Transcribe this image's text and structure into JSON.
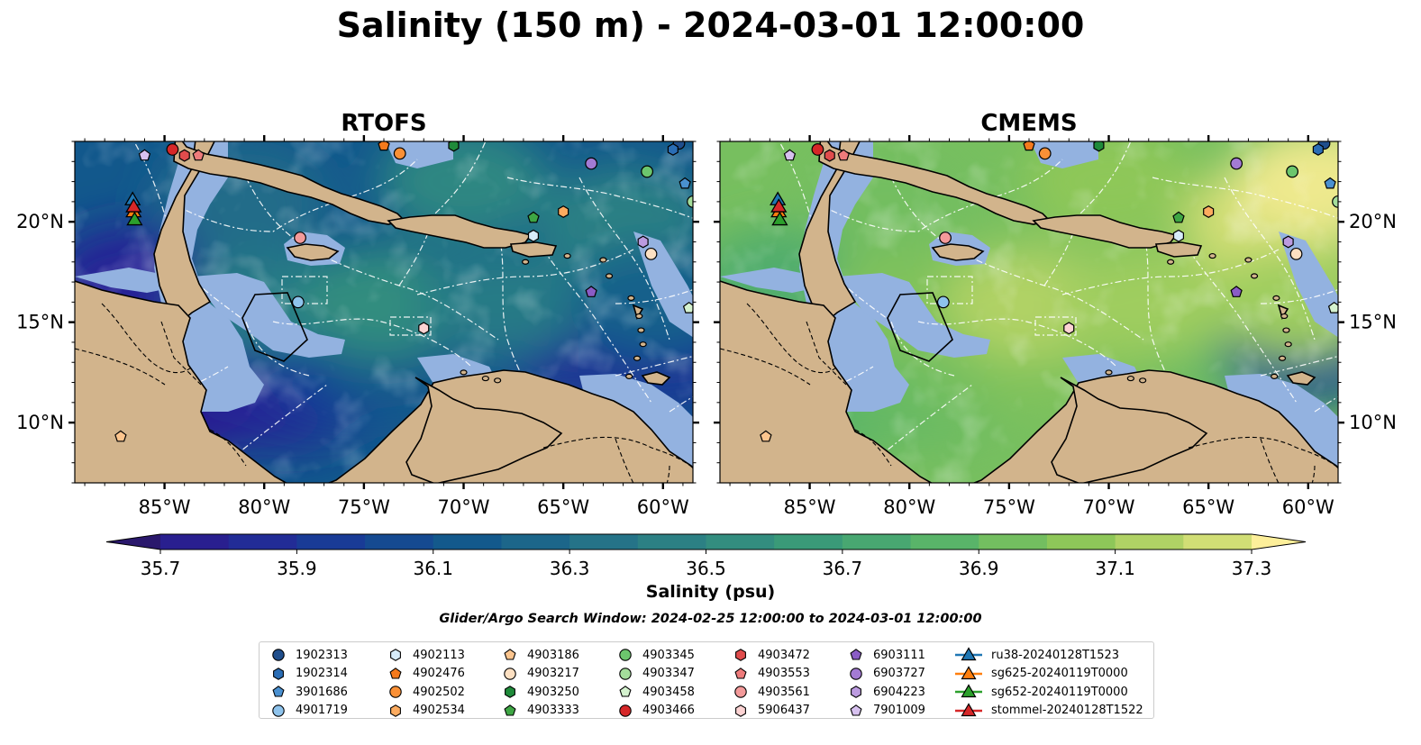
{
  "title": "Salinity (150 m) - 2024-03-01 12:00:00",
  "colorbar_label": "Salinity (psu)",
  "search_window": "Glider/Argo Search Window: 2024-02-25 12:00:00 to 2024-03-01 12:00:00",
  "colors": {
    "land": "#d2b48c",
    "shelf": "#93b2e0",
    "contour": "#ffffff"
  },
  "chart_data": [
    {
      "type": "heatmap",
      "title": "RTOFS",
      "x_ticks": [
        -85,
        -80,
        -75,
        -70,
        -65,
        -60
      ],
      "x_tick_labels": [
        "85°W",
        "80°W",
        "75°W",
        "70°W",
        "65°W",
        "60°W"
      ],
      "y_ticks": [
        10,
        15,
        20
      ],
      "y_tick_labels": [
        "10°N",
        "15°N",
        "20°N"
      ],
      "xlim": [
        -89.5,
        -58.5
      ],
      "ylim": [
        7,
        24
      ],
      "regional_salinity": [
        {
          "lon": -83.5,
          "lat": 11.0,
          "value": 35.75
        },
        {
          "lon": -79.0,
          "lat": 11.5,
          "value": 35.8
        },
        {
          "lon": -76.0,
          "lat": 12.5,
          "value": 35.95
        },
        {
          "lon": -73.0,
          "lat": 13.0,
          "value": 36.15
        },
        {
          "lon": -64.0,
          "lat": 14.0,
          "value": 35.85
        },
        {
          "lon": -60.0,
          "lat": 13.5,
          "value": 35.9
        },
        {
          "lon": -86.5,
          "lat": 17.0,
          "value": 35.8
        },
        {
          "lon": -80.0,
          "lat": 16.0,
          "value": 36.4
        },
        {
          "lon": -74.0,
          "lat": 16.0,
          "value": 36.55
        },
        {
          "lon": -68.0,
          "lat": 16.0,
          "value": 36.4
        },
        {
          "lon": -81.0,
          "lat": 21.0,
          "value": 36.3
        },
        {
          "lon": -70.0,
          "lat": 22.0,
          "value": 36.5
        },
        {
          "lon": -62.0,
          "lat": 20.0,
          "value": 36.45
        },
        {
          "lon": -60.5,
          "lat": 16.0,
          "value": 36.2
        }
      ]
    },
    {
      "type": "heatmap",
      "title": "CMEMS",
      "x_ticks": [
        -85,
        -80,
        -75,
        -70,
        -65,
        -60
      ],
      "x_tick_labels": [
        "85°W",
        "80°W",
        "75°W",
        "70°W",
        "65°W",
        "60°W"
      ],
      "y_ticks": [
        10,
        15,
        20
      ],
      "y_tick_labels": [
        "10°N",
        "15°N",
        "20°N"
      ],
      "xlim": [
        -89.5,
        -58.5
      ],
      "ylim": [
        7,
        24
      ],
      "regional_salinity": [
        {
          "lon": -83.5,
          "lat": 11.0,
          "value": 36.85
        },
        {
          "lon": -79.0,
          "lat": 11.5,
          "value": 36.9
        },
        {
          "lon": -76.0,
          "lat": 12.5,
          "value": 36.95
        },
        {
          "lon": -73.0,
          "lat": 13.0,
          "value": 37.0
        },
        {
          "lon": -64.0,
          "lat": 14.0,
          "value": 36.9
        },
        {
          "lon": -60.0,
          "lat": 13.5,
          "value": 36.1
        },
        {
          "lon": -86.5,
          "lat": 17.0,
          "value": 36.8
        },
        {
          "lon": -80.0,
          "lat": 16.0,
          "value": 37.0
        },
        {
          "lon": -74.0,
          "lat": 16.0,
          "value": 37.15
        },
        {
          "lon": -68.0,
          "lat": 16.0,
          "value": 37.1
        },
        {
          "lon": -81.0,
          "lat": 21.0,
          "value": 36.95
        },
        {
          "lon": -70.0,
          "lat": 22.0,
          "value": 37.05
        },
        {
          "lon": -62.0,
          "lat": 20.0,
          "value": 37.25
        },
        {
          "lon": -59.5,
          "lat": 22.0,
          "value": 37.35
        },
        {
          "lon": -60.5,
          "lat": 16.0,
          "value": 37.1
        }
      ]
    }
  ],
  "colorbar": {
    "min": 35.6,
    "max": 37.4,
    "step": 0.1,
    "ticks": [
      35.7,
      35.9,
      36.1,
      36.3,
      36.5,
      36.7,
      36.9,
      37.1,
      37.3
    ],
    "tick_labels": [
      "35.7",
      "35.9",
      "36.1",
      "36.3",
      "36.5",
      "36.7",
      "36.9",
      "37.1",
      "37.3"
    ],
    "colormap": "haline",
    "extend": "both"
  },
  "observations": [
    {
      "name": "1902313",
      "marker": "circle",
      "color": "#1f4e8c",
      "lon": -59.2,
      "lat": 23.9
    },
    {
      "name": "1902314",
      "marker": "hexagon",
      "color": "#2a6db5",
      "lon": -59.5,
      "lat": 23.6
    },
    {
      "name": "3901686",
      "marker": "pentagon",
      "color": "#4a90d0",
      "lon": -58.9,
      "lat": 21.9
    },
    {
      "name": "4901719",
      "marker": "circle",
      "color": "#8ec3ec",
      "lon": -78.3,
      "lat": 16.0
    },
    {
      "name": "4902113",
      "marker": "hexagon",
      "color": "#d7ecfa",
      "lon": -66.5,
      "lat": 19.3
    },
    {
      "name": "4902476",
      "marker": "pentagon",
      "color": "#f57a1c",
      "lon": -74.0,
      "lat": 23.8
    },
    {
      "name": "4902502",
      "marker": "circle",
      "color": "#fa9036",
      "lon": -73.2,
      "lat": 23.4
    },
    {
      "name": "4902534",
      "marker": "hexagon",
      "color": "#fcab5f",
      "lon": -65.0,
      "lat": 20.5
    },
    {
      "name": "4903186",
      "marker": "pentagon",
      "color": "#fcc58e",
      "lon": -87.2,
      "lat": 9.3
    },
    {
      "name": "4903217",
      "marker": "circle",
      "color": "#fde0c2",
      "lon": -60.6,
      "lat": 18.4
    },
    {
      "name": "4903250",
      "marker": "hexagon",
      "color": "#1f8a3a",
      "lon": -70.5,
      "lat": 23.8
    },
    {
      "name": "4903333",
      "marker": "pentagon",
      "color": "#3ea644",
      "lon": -66.5,
      "lat": 20.2
    },
    {
      "name": "4903345",
      "marker": "circle",
      "color": "#6cc66d",
      "lon": -60.8,
      "lat": 22.5
    },
    {
      "name": "4903347",
      "marker": "circle",
      "color": "#a4dd9b",
      "lon": -58.5,
      "lat": 21.0
    },
    {
      "name": "4903458",
      "marker": "pentagon",
      "color": "#d5f2cf",
      "lon": -58.7,
      "lat": 15.7
    },
    {
      "name": "4903466",
      "marker": "circle",
      "color": "#d62728",
      "lon": -84.6,
      "lat": 23.6
    },
    {
      "name": "4903472",
      "marker": "hexagon",
      "color": "#e04c4c",
      "lon": -84.0,
      "lat": 23.3
    },
    {
      "name": "4903553",
      "marker": "pentagon",
      "color": "#ee7b7b",
      "lon": -83.3,
      "lat": 23.3
    },
    {
      "name": "4903561",
      "marker": "circle",
      "color": "#f39a9a",
      "lon": -78.2,
      "lat": 19.2
    },
    {
      "name": "5906437",
      "marker": "hexagon",
      "color": "#fcd3d3",
      "lon": -72.0,
      "lat": 14.7
    },
    {
      "name": "6903111",
      "marker": "pentagon",
      "color": "#8a5cc5",
      "lon": -63.6,
      "lat": 16.5
    },
    {
      "name": "6903727",
      "marker": "circle",
      "color": "#a37bd4",
      "lon": -63.6,
      "lat": 22.9
    },
    {
      "name": "6904223",
      "marker": "hexagon",
      "color": "#bc9be0",
      "lon": -61.0,
      "lat": 19.0
    },
    {
      "name": "7901009",
      "marker": "pentagon",
      "color": "#d7c1ef",
      "lon": -86.0,
      "lat": 23.3
    }
  ],
  "gliders": [
    {
      "name": "ru38-20240128T1523",
      "line_color": "#1f77b4",
      "marker_color": "#1f77b4",
      "lon": -86.6,
      "lat": 21.1
    },
    {
      "name": "sg625-20240119T0000",
      "line_color": "#ff7f0e",
      "marker_color": "#ff7f0e",
      "lon": -86.55,
      "lat": 20.5
    },
    {
      "name": "sg652-20240119T0000",
      "line_color": "#2ca02c",
      "marker_color": "#2ca02c",
      "lon": -86.5,
      "lat": 20.1
    },
    {
      "name": "stommel-20240128T1522",
      "line_color": "#d62728",
      "marker_color": "#d62728",
      "lon": -86.55,
      "lat": 20.75
    }
  ]
}
